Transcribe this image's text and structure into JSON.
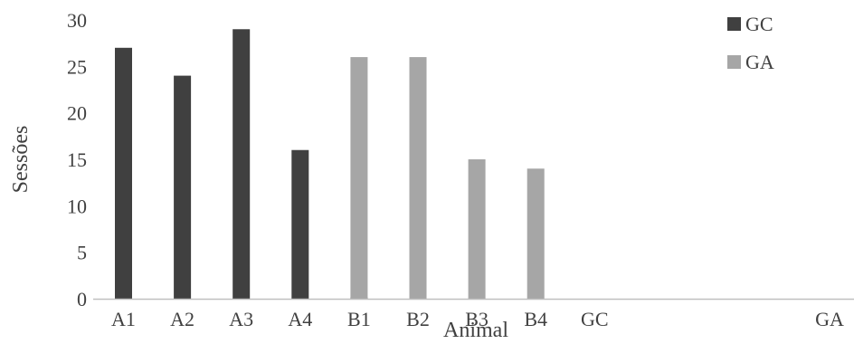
{
  "chart_data": {
    "type": "bar",
    "xlabel": "Animal",
    "ylabel": "Sessões",
    "categories": [
      "A1",
      "A2",
      "A3",
      "A4",
      "B1",
      "B2",
      "B3",
      "B4",
      "GC",
      "GA"
    ],
    "ylim": [
      0,
      30
    ],
    "yticks": [
      "0",
      "5",
      "10",
      "15",
      "20",
      "25",
      "30"
    ],
    "grid": false,
    "legend_position": "top-right",
    "series": [
      {
        "name": "GC",
        "color": "#404040",
        "values": [
          27,
          24,
          29,
          16,
          0,
          null,
          null,
          null,
          null,
          null
        ]
      },
      {
        "name": "GA",
        "color": "#a6a6a6",
        "values": [
          null,
          null,
          null,
          null,
          26,
          26,
          15,
          14,
          null,
          null
        ]
      }
    ]
  }
}
